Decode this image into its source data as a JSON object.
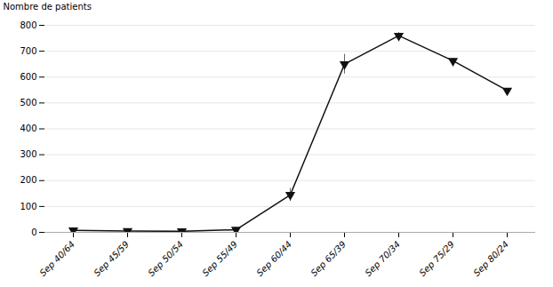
{
  "chart_data": {
    "type": "line",
    "categories": [
      "Sep 40/64",
      "Sep 45/59",
      "Sep 50/54",
      "Sep 55/49",
      "Sep 60/44",
      "Sep 65/39",
      "Sep 70/34",
      "Sep 75/29",
      "Sep 80/24"
    ],
    "values": [
      8,
      5,
      4,
      10,
      145,
      650,
      760,
      663,
      548
    ],
    "errors": [
      0,
      0,
      0,
      0,
      25,
      38,
      12,
      10,
      6
    ],
    "ylabel": "Nombre de patients",
    "ylim": [
      0,
      800
    ],
    "yticks": [
      0,
      100,
      200,
      300,
      400,
      500,
      600,
      700,
      800
    ],
    "color": "#111111",
    "marker": "triangle_down",
    "grid": true
  }
}
